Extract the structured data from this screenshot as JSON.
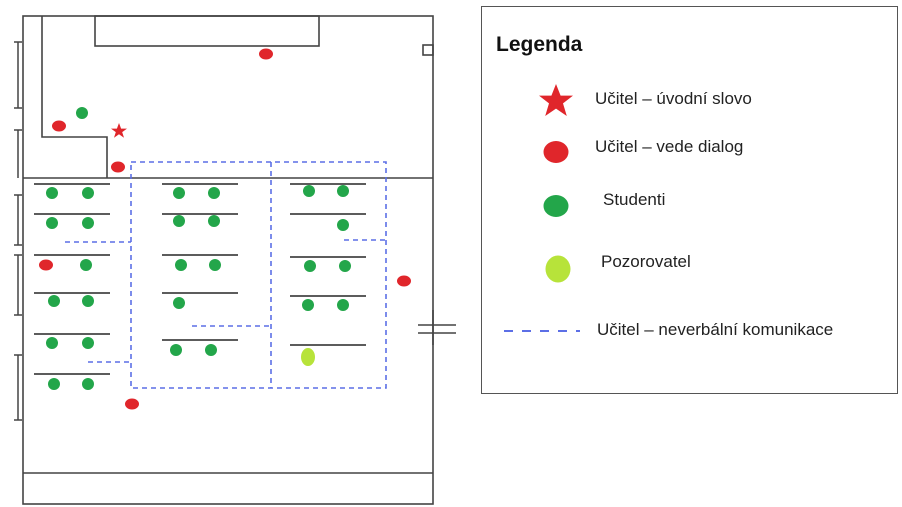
{
  "legend": {
    "title": "Legenda",
    "items": [
      {
        "key": "teacher-intro",
        "label": "Učitel – úvodní slovo",
        "symbol": "star-icon",
        "color": "#e0262b"
      },
      {
        "key": "teacher-dialog",
        "label": "Učitel – vede dialog",
        "symbol": "red-dot-icon",
        "color": "#e0262b"
      },
      {
        "key": "students",
        "label": "Studenti",
        "symbol": "green-dot-icon",
        "color": "#23a64a"
      },
      {
        "key": "observer",
        "label": "Pozorovatel",
        "symbol": "yellow-green-dot-icon",
        "color": "#b7e33a"
      },
      {
        "key": "nonverbal",
        "label": "Učitel – neverbální komunikace",
        "symbol": "dashed-line-icon",
        "color": "#5c6fe6"
      }
    ]
  },
  "colors": {
    "teacher": "#e0262b",
    "student": "#23a64a",
    "observer": "#b7e33a",
    "nonverbal": "#5c6fe6",
    "wall": "#444444"
  }
}
